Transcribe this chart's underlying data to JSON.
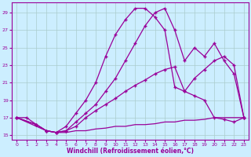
{
  "xlabel": "Windchill (Refroidissement éolien,°C)",
  "background_color": "#cceeff",
  "grid_color": "#aacccc",
  "line_color": "#990099",
  "xlim": [
    -0.5,
    23.5
  ],
  "ylim": [
    14.5,
    30.2
  ],
  "xticks": [
    0,
    1,
    2,
    3,
    4,
    5,
    6,
    7,
    8,
    9,
    10,
    11,
    12,
    13,
    14,
    15,
    16,
    17,
    18,
    19,
    20,
    21,
    22,
    23
  ],
  "yticks": [
    15,
    17,
    19,
    21,
    23,
    25,
    27,
    29
  ],
  "s1_x": [
    0,
    1,
    2,
    3,
    4,
    5,
    6,
    7,
    8,
    9,
    10,
    11,
    12,
    13,
    14,
    15,
    16,
    17,
    18,
    19,
    20,
    21,
    22,
    23
  ],
  "s1_y": [
    17.0,
    17.0,
    16.2,
    15.5,
    15.3,
    16.0,
    17.5,
    19.0,
    21.0,
    24.0,
    26.5,
    28.2,
    29.5,
    29.5,
    28.5,
    27.0,
    20.5,
    20.0,
    19.5,
    19.0,
    17.0,
    16.8,
    16.5,
    17.0
  ],
  "s2_x": [
    0,
    2,
    3,
    4,
    5,
    6,
    7,
    8,
    9,
    10,
    11,
    12,
    13,
    14,
    15,
    16,
    17,
    18,
    19,
    20,
    21,
    22,
    23
  ],
  "s2_y": [
    17.0,
    16.2,
    15.5,
    15.3,
    15.5,
    16.5,
    17.5,
    18.5,
    20.0,
    21.5,
    23.5,
    25.5,
    27.5,
    29.0,
    29.5,
    27.0,
    23.5,
    25.0,
    24.0,
    25.5,
    23.5,
    22.0,
    17.0
  ],
  "s3_x": [
    0,
    2,
    3,
    4,
    5,
    6,
    7,
    8,
    9,
    10,
    11,
    12,
    13,
    14,
    15,
    16,
    17,
    18,
    19,
    20,
    21,
    22,
    23
  ],
  "s3_y": [
    17.0,
    16.2,
    15.5,
    15.3,
    15.5,
    16.0,
    17.0,
    17.8,
    18.5,
    19.2,
    20.0,
    20.7,
    21.3,
    22.0,
    22.5,
    22.8,
    20.0,
    21.5,
    22.5,
    23.5,
    24.0,
    23.0,
    17.0
  ],
  "s4_x": [
    0,
    2,
    3,
    4,
    5,
    6,
    7,
    8,
    9,
    10,
    11,
    12,
    13,
    14,
    15,
    16,
    17,
    18,
    19,
    20,
    21,
    22,
    23
  ],
  "s4_y": [
    17.0,
    16.0,
    15.5,
    15.3,
    15.3,
    15.5,
    15.5,
    15.7,
    15.8,
    16.0,
    16.0,
    16.2,
    16.2,
    16.3,
    16.5,
    16.5,
    16.7,
    16.7,
    16.8,
    17.0,
    17.0,
    17.0,
    17.0
  ]
}
